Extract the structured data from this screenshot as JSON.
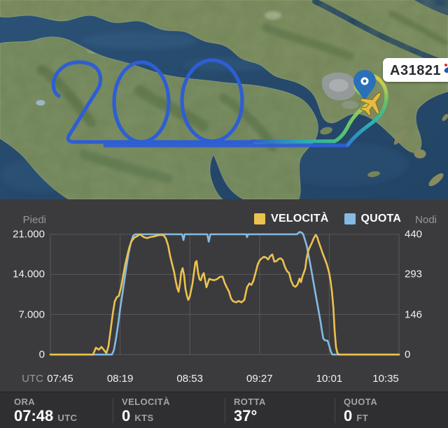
{
  "map": {
    "flight_label": "A31821",
    "trail_text": "200",
    "pin_color": "#2a70b8",
    "plane_color": "#e8bb3f",
    "trail_colors": {
      "high": "#2e5ed4",
      "mid": "#2aa9bd",
      "low": "#49bf79",
      "ground": "#d9c64f"
    }
  },
  "legend": [
    {
      "label": "VELOCITÀ",
      "color": "#ECC24F"
    },
    {
      "label": "QUOTA",
      "color": "#85BAE2"
    }
  ],
  "axes": {
    "left_unit": "Piedi",
    "right_unit": "Nodi",
    "x_unit": "UTC",
    "left_ticks": [
      "21.000",
      "14.000",
      "7.000",
      "0"
    ],
    "right_ticks": [
      "440",
      "293",
      "146",
      "0"
    ],
    "x_ticks": [
      "07:45",
      "08:19",
      "08:53",
      "09:27",
      "10:01",
      "10:35"
    ]
  },
  "chart_data": {
    "type": "line",
    "title": "",
    "xlabel": "UTC time",
    "x_range_minutes": [
      0,
      170
    ],
    "x_start_label": "07:45",
    "grid": true,
    "legend_position": "top-right",
    "series": [
      {
        "name": "QUOTA",
        "unit": "ft",
        "axis": "left",
        "ylim": [
          0,
          21000
        ],
        "color": "#85BAE2",
        "points": [
          [
            0,
            0
          ],
          [
            30,
            0
          ],
          [
            31,
            800
          ],
          [
            32.1,
            3000
          ],
          [
            33.1,
            5500
          ],
          [
            34.1,
            8200
          ],
          [
            35.2,
            10800
          ],
          [
            36.2,
            13200
          ],
          [
            37.2,
            15600
          ],
          [
            38.2,
            17800
          ],
          [
            39.3,
            19600
          ],
          [
            40.3,
            20700
          ],
          [
            41.3,
            21000
          ],
          [
            64.2,
            21000
          ],
          [
            64.9,
            20000
          ],
          [
            65.5,
            21000
          ],
          [
            76.5,
            21000
          ],
          [
            77.2,
            19700
          ],
          [
            78,
            21000
          ],
          [
            95.6,
            21000
          ],
          [
            95.9,
            20500
          ],
          [
            96.4,
            21000
          ],
          [
            120.2,
            21000
          ],
          [
            121.5,
            21400
          ],
          [
            122.5,
            21300
          ],
          [
            123.3,
            21000
          ],
          [
            125,
            19000
          ],
          [
            127,
            15300
          ],
          [
            129,
            11200
          ],
          [
            130.7,
            7800
          ],
          [
            131.8,
            5600
          ],
          [
            132.5,
            4000
          ],
          [
            133.1,
            2800
          ],
          [
            133.8,
            2500
          ],
          [
            135.2,
            2400
          ],
          [
            135.9,
            1600
          ],
          [
            136.6,
            700
          ],
          [
            137.3,
            100
          ],
          [
            137.6,
            0
          ],
          [
            170,
            0
          ]
        ]
      },
      {
        "name": "VELOCITÀ",
        "unit": "kts",
        "axis": "right",
        "ylim": [
          0,
          440
        ],
        "color": "#ECC24F",
        "points": [
          [
            0,
            0
          ],
          [
            20.8,
            0
          ],
          [
            22.2,
            25
          ],
          [
            23.6,
            18
          ],
          [
            24.9,
            28
          ],
          [
            26.3,
            15
          ],
          [
            27.3,
            5
          ],
          [
            28.3,
            30
          ],
          [
            29.4,
            90
          ],
          [
            30.4,
            150
          ],
          [
            31.4,
            195
          ],
          [
            32.4,
            210
          ],
          [
            33.4,
            215
          ],
          [
            34.5,
            248
          ],
          [
            35.5,
            290
          ],
          [
            36.5,
            330
          ],
          [
            37.6,
            365
          ],
          [
            38.6,
            395
          ],
          [
            39.6,
            415
          ],
          [
            41,
            428
          ],
          [
            42.3,
            433
          ],
          [
            43.7,
            440
          ],
          [
            45.4,
            430
          ],
          [
            47.1,
            426
          ],
          [
            48.8,
            430
          ],
          [
            50.5,
            432
          ],
          [
            52.2,
            436
          ],
          [
            53.9,
            438
          ],
          [
            55.3,
            436
          ],
          [
            56.3,
            425
          ],
          [
            57.4,
            400
          ],
          [
            58.4,
            360
          ],
          [
            59.4,
            330
          ],
          [
            60.4,
            300
          ],
          [
            61.1,
            270
          ],
          [
            61.8,
            245
          ],
          [
            62.5,
            230
          ],
          [
            63.2,
            260
          ],
          [
            63.8,
            300
          ],
          [
            64.5,
            316
          ],
          [
            65.2,
            290
          ],
          [
            65.9,
            240
          ],
          [
            66.6,
            215
          ],
          [
            67.2,
            200
          ],
          [
            67.9,
            210
          ],
          [
            68.6,
            235
          ],
          [
            69.3,
            260
          ],
          [
            70,
            300
          ],
          [
            70.7,
            337
          ],
          [
            71.3,
            342
          ],
          [
            72,
            300
          ],
          [
            72.7,
            275
          ],
          [
            73.4,
            272
          ],
          [
            74.1,
            290
          ],
          [
            74.8,
            298
          ],
          [
            75.5,
            270
          ],
          [
            76.1,
            246
          ],
          [
            76.8,
            262
          ],
          [
            77.5,
            277
          ],
          [
            78.5,
            274
          ],
          [
            79.9,
            272
          ],
          [
            81.3,
            276
          ],
          [
            82.6,
            284
          ],
          [
            84,
            285
          ],
          [
            85,
            262
          ],
          [
            86,
            246
          ],
          [
            87.1,
            230
          ],
          [
            88.1,
            205
          ],
          [
            89.1,
            195
          ],
          [
            90.5,
            191
          ],
          [
            91.8,
            196
          ],
          [
            93.2,
            191
          ],
          [
            94.6,
            200
          ],
          [
            95.9,
            246
          ],
          [
            97,
            260
          ],
          [
            98,
            255
          ],
          [
            99,
            270
          ],
          [
            100.1,
            300
          ],
          [
            101.1,
            330
          ],
          [
            102.1,
            345
          ],
          [
            103.1,
            352
          ],
          [
            104.1,
            358
          ],
          [
            105.1,
            355
          ],
          [
            106.2,
            348
          ],
          [
            107.2,
            360
          ],
          [
            108.2,
            366
          ],
          [
            109.2,
            340
          ],
          [
            110.3,
            342
          ],
          [
            111.3,
            350
          ],
          [
            112.3,
            352
          ],
          [
            113.3,
            345
          ],
          [
            114.4,
            320
          ],
          [
            115.4,
            305
          ],
          [
            116.4,
            298
          ],
          [
            117.4,
            270
          ],
          [
            118.5,
            252
          ],
          [
            119.5,
            248
          ],
          [
            120.5,
            256
          ],
          [
            121.5,
            278
          ],
          [
            122.2,
            265
          ],
          [
            122.9,
            285
          ],
          [
            123.6,
            300
          ],
          [
            124.3,
            315
          ],
          [
            124.9,
            350
          ],
          [
            125.6,
            375
          ],
          [
            126.3,
            390
          ],
          [
            127.3,
            405
          ],
          [
            128.4,
            425
          ],
          [
            129.4,
            438
          ],
          [
            130.1,
            430
          ],
          [
            130.7,
            415
          ],
          [
            131.4,
            400
          ],
          [
            132.1,
            385
          ],
          [
            132.8,
            370
          ],
          [
            133.8,
            350
          ],
          [
            134.8,
            330
          ],
          [
            135.9,
            300
          ],
          [
            136.6,
            270
          ],
          [
            137.3,
            230
          ],
          [
            138,
            170
          ],
          [
            138.6,
            90
          ],
          [
            139.3,
            25
          ],
          [
            140,
            5
          ],
          [
            140.7,
            0
          ],
          [
            170,
            0
          ]
        ]
      }
    ]
  },
  "statusbar": {
    "items": [
      {
        "label": "ORA",
        "value": "07:48",
        "unit": "UTC"
      },
      {
        "label": "VELOCITÀ",
        "value": "0",
        "unit": "KTS"
      },
      {
        "label": "ROTTA",
        "value": "37°",
        "unit": ""
      },
      {
        "label": "QUOTA",
        "value": "0",
        "unit": "FT"
      }
    ]
  },
  "colors": {
    "panel_bg": "#3b3b3d",
    "bar_bg": "#2f2f31",
    "grid": "#58585c",
    "tick_text": "#f2f2f4",
    "muted_text": "#97979c"
  }
}
